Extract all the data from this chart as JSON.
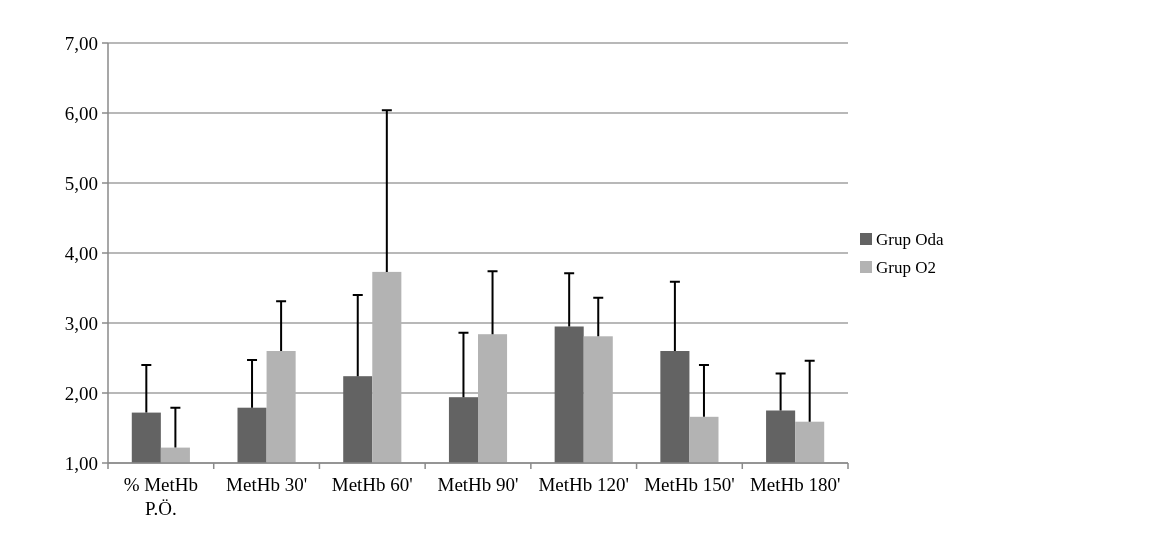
{
  "chart_data": {
    "type": "bar",
    "categories": [
      "% MetHb P.Ö.",
      "MetHb 30'",
      "MetHb 60'",
      "MetHb 90'",
      "MetHb 120'",
      "MetHb 150'",
      "MetHb 180'"
    ],
    "series": [
      {
        "name": "Grup Oda",
        "color": "#636363",
        "values": [
          1.72,
          1.79,
          2.24,
          1.94,
          2.95,
          2.6,
          1.75
        ],
        "errors": [
          [
            1.72,
            2.4
          ],
          [
            1.79,
            2.47
          ],
          [
            2.24,
            3.4
          ],
          [
            1.94,
            2.86
          ],
          [
            2.95,
            3.71
          ],
          [
            2.6,
            3.59
          ],
          [
            1.75,
            2.28
          ]
        ]
      },
      {
        "name": "Grup O2",
        "color": "#b3b3b3",
        "values": [
          1.22,
          2.6,
          3.73,
          2.84,
          2.81,
          1.66,
          1.59
        ],
        "errors": [
          [
            1.22,
            1.79
          ],
          [
            2.6,
            3.31
          ],
          [
            3.73,
            6.04
          ],
          [
            2.84,
            3.74
          ],
          [
            2.81,
            3.36
          ],
          [
            1.66,
            2.4
          ],
          [
            1.59,
            2.46
          ]
        ]
      }
    ],
    "ylim": [
      1,
      7
    ],
    "yticks": [
      {
        "value": 1,
        "label": "1,00"
      },
      {
        "value": 2,
        "label": "2,00"
      },
      {
        "value": 3,
        "label": "3,00"
      },
      {
        "value": 4,
        "label": "4,00"
      },
      {
        "value": 5,
        "label": "5,00"
      },
      {
        "value": 6,
        "label": "6,00"
      },
      {
        "value": 7,
        "label": "7,00"
      }
    ],
    "grid": "y",
    "legend": "right"
  }
}
